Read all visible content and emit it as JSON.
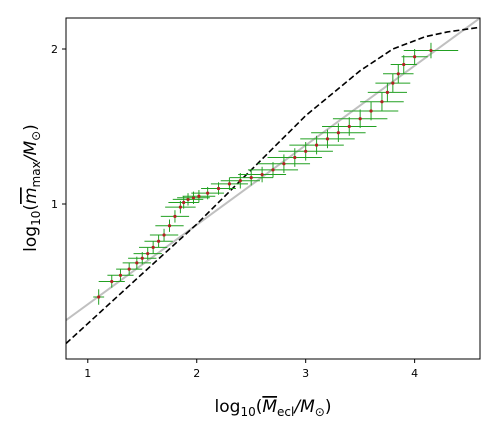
{
  "chart_data": {
    "type": "scatter",
    "title": "",
    "xlabel_parts": {
      "prefix": "log",
      "sub": "10",
      "open": "(",
      "var": "M",
      "var_sub": "ecl",
      "slash": "/",
      "unit": "M",
      "unit_sub": "⊙",
      "close": ")"
    },
    "ylabel_parts": {
      "prefix": "log",
      "sub": "10",
      "open": "(",
      "var": "m",
      "var_sub": "max",
      "slash": "/",
      "unit": "M",
      "unit_sub": "⊙",
      "close": ")"
    },
    "xlim": [
      0.8,
      4.6
    ],
    "ylim": [
      0.0,
      2.2
    ],
    "xticks": [
      1,
      2,
      3,
      4
    ],
    "yticks": [
      1,
      2
    ],
    "grid": false,
    "colors": {
      "points": "#b22222",
      "errorbars": "#22a022",
      "fit_line": "#c0c0c0",
      "model_curve": "#000000"
    },
    "series": [
      {
        "style": "points-with-errorbars",
        "x": [
          1.1,
          1.22,
          1.3,
          1.38,
          1.45,
          1.5,
          1.55,
          1.6,
          1.65,
          1.7,
          1.75,
          1.8,
          1.85,
          1.88,
          1.92,
          1.97,
          2.02,
          2.1,
          2.2,
          2.3,
          2.4,
          2.5,
          2.6,
          2.7,
          2.8,
          2.9,
          3.0,
          3.1,
          3.2,
          3.3,
          3.4,
          3.5,
          3.6,
          3.7,
          3.75,
          3.8,
          3.85,
          3.9,
          4.0,
          4.15
        ],
        "y": [
          0.4,
          0.5,
          0.54,
          0.58,
          0.62,
          0.65,
          0.68,
          0.72,
          0.76,
          0.8,
          0.86,
          0.92,
          0.98,
          1.01,
          1.03,
          1.04,
          1.05,
          1.07,
          1.1,
          1.13,
          1.15,
          1.17,
          1.19,
          1.22,
          1.26,
          1.3,
          1.34,
          1.38,
          1.42,
          1.46,
          1.5,
          1.55,
          1.6,
          1.66,
          1.72,
          1.78,
          1.84,
          1.9,
          1.95,
          1.99
        ],
        "xerr": [
          0.05,
          0.12,
          0.12,
          0.12,
          0.13,
          0.13,
          0.13,
          0.13,
          0.13,
          0.13,
          0.13,
          0.13,
          0.14,
          0.14,
          0.14,
          0.15,
          0.15,
          0.15,
          0.16,
          0.17,
          0.18,
          0.2,
          0.22,
          0.23,
          0.24,
          0.25,
          0.25,
          0.25,
          0.25,
          0.25,
          0.25,
          0.25,
          0.25,
          0.2,
          0.18,
          0.16,
          0.14,
          0.12,
          0.12,
          0.25
        ],
        "yerr": [
          0.05,
          0.04,
          0.04,
          0.04,
          0.04,
          0.04,
          0.04,
          0.04,
          0.04,
          0.04,
          0.04,
          0.04,
          0.04,
          0.04,
          0.04,
          0.04,
          0.04,
          0.04,
          0.04,
          0.04,
          0.05,
          0.05,
          0.05,
          0.05,
          0.06,
          0.06,
          0.06,
          0.06,
          0.06,
          0.06,
          0.06,
          0.06,
          0.06,
          0.06,
          0.06,
          0.06,
          0.06,
          0.06,
          0.05,
          0.05
        ]
      },
      {
        "style": "solid-line",
        "x": [
          0.8,
          4.6
        ],
        "y": [
          0.25,
          2.2
        ]
      },
      {
        "style": "dashed-line",
        "x": [
          0.8,
          1.5,
          2.0,
          2.5,
          3.0,
          3.5,
          3.8,
          4.1,
          4.3,
          4.6
        ],
        "y": [
          0.1,
          0.55,
          0.87,
          1.22,
          1.57,
          1.86,
          2.0,
          2.08,
          2.11,
          2.14
        ]
      }
    ]
  }
}
